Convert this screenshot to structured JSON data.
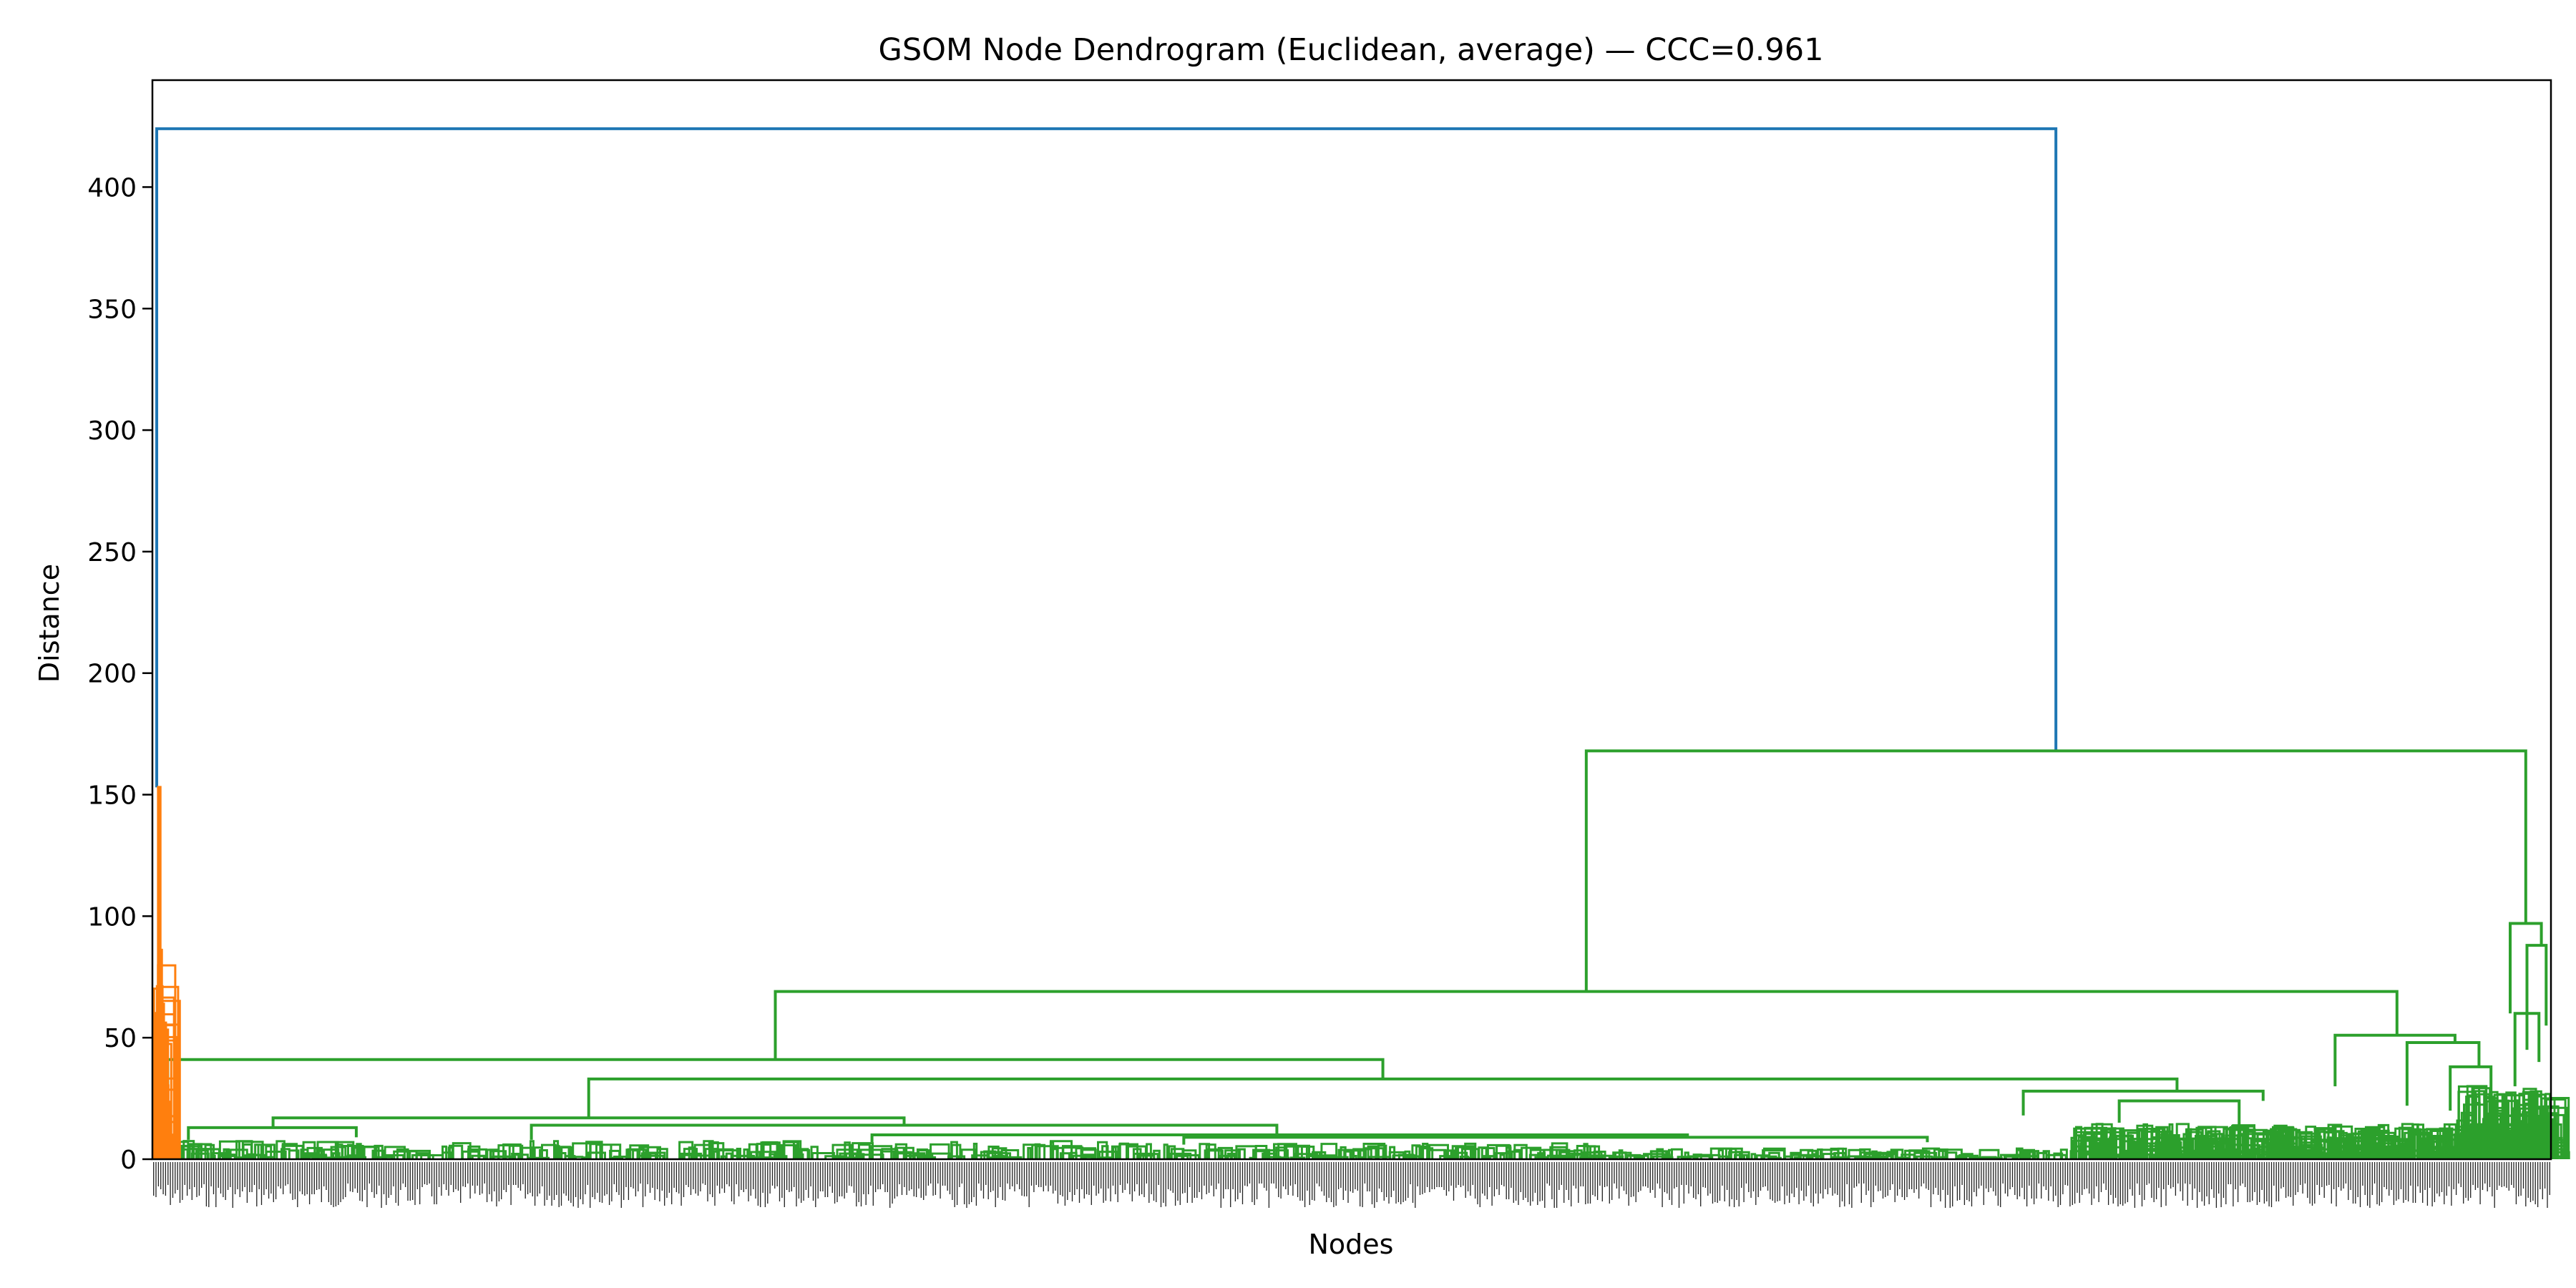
{
  "chart_data": {
    "type": "dendrogram",
    "title": "GSOM Node Dendrogram (Euclidean, average) — CCC=0.961",
    "xlabel": "Nodes",
    "ylabel": "Distance",
    "ylim": [
      0,
      444
    ],
    "yticks": [
      0,
      50,
      100,
      150,
      200,
      250,
      300,
      350,
      400
    ],
    "grid": false,
    "colors": {
      "root": "#1f77b4",
      "cluster_a": "#ff7f0e",
      "cluster_b": "#2ca02c"
    },
    "note": "Leaf axis spans node positions 0-1000; x values below are leaf-axis positions, y values are merge distances.",
    "merges": [
      {
        "color": "root",
        "xl": 1.8,
        "xr": 793.6,
        "y": 424,
        "yl": 153,
        "yr": 168
      },
      {
        "color": "cluster_a",
        "xl": 2.5,
        "xr": 3.2,
        "y": 153,
        "yl": 60,
        "yr": 86
      },
      {
        "color": "cluster_a",
        "xl": 1.0,
        "xr": 1.6,
        "y": 60,
        "yl": 0,
        "yr": 30
      },
      {
        "color": "cluster_a",
        "xl": 3.0,
        "xr": 3.8,
        "y": 86,
        "yl": 40,
        "yr": 25
      },
      {
        "color": "cluster_b",
        "xl": 597.8,
        "xr": 989.5,
        "y": 168,
        "yl": 69,
        "yr": 97
      },
      {
        "color": "cluster_b",
        "xl": 259.7,
        "xr": 935.8,
        "y": 69,
        "yl": 41,
        "yr": 51
      },
      {
        "color": "cluster_b",
        "xl": 6.4,
        "xr": 513.0,
        "y": 41,
        "yl": 12,
        "yr": 33
      },
      {
        "color": "cluster_b",
        "xl": 181.9,
        "xr": 844.1,
        "y": 33,
        "yl": 17,
        "yr": 28
      },
      {
        "color": "cluster_b",
        "xl": 50.3,
        "xr": 313.4,
        "y": 17,
        "yl": 13,
        "yr": 14
      },
      {
        "color": "cluster_b",
        "xl": 15.0,
        "xr": 85.0,
        "y": 13,
        "yl": 8,
        "yr": 9
      },
      {
        "color": "cluster_b",
        "xl": 158.0,
        "xr": 468.8,
        "y": 14,
        "yl": 8,
        "yr": 10
      },
      {
        "color": "cluster_b",
        "xl": 300.0,
        "xr": 640.0,
        "y": 10,
        "yl": 7,
        "yr": 9
      },
      {
        "color": "cluster_b",
        "xl": 430.0,
        "xr": 740.0,
        "y": 9,
        "yl": 6,
        "yr": 7
      },
      {
        "color": "cluster_b",
        "xl": 780.0,
        "xr": 880.0,
        "y": 28,
        "yl": 18,
        "yr": 24
      },
      {
        "color": "cluster_b",
        "xl": 820.0,
        "xr": 870.0,
        "y": 24,
        "yl": 15,
        "yr": 14
      },
      {
        "color": "cluster_b",
        "xl": 910.0,
        "xr": 960.0,
        "y": 51,
        "yl": 30,
        "yr": 48
      },
      {
        "color": "cluster_b",
        "xl": 940.0,
        "xr": 970.0,
        "y": 48,
        "yl": 22,
        "yr": 38
      },
      {
        "color": "cluster_b",
        "xl": 983.0,
        "xr": 996.0,
        "y": 97,
        "yl": 60,
        "yr": 88
      },
      {
        "color": "cluster_b",
        "xl": 990.0,
        "xr": 998.0,
        "y": 88,
        "yl": 45,
        "yr": 55
      },
      {
        "color": "cluster_b",
        "xl": 958.0,
        "xr": 975.0,
        "y": 38,
        "yl": 20,
        "yr": 25
      },
      {
        "color": "cluster_b",
        "xl": 985.0,
        "xr": 995.0,
        "y": 60,
        "yl": 30,
        "yr": 40
      }
    ]
  }
}
